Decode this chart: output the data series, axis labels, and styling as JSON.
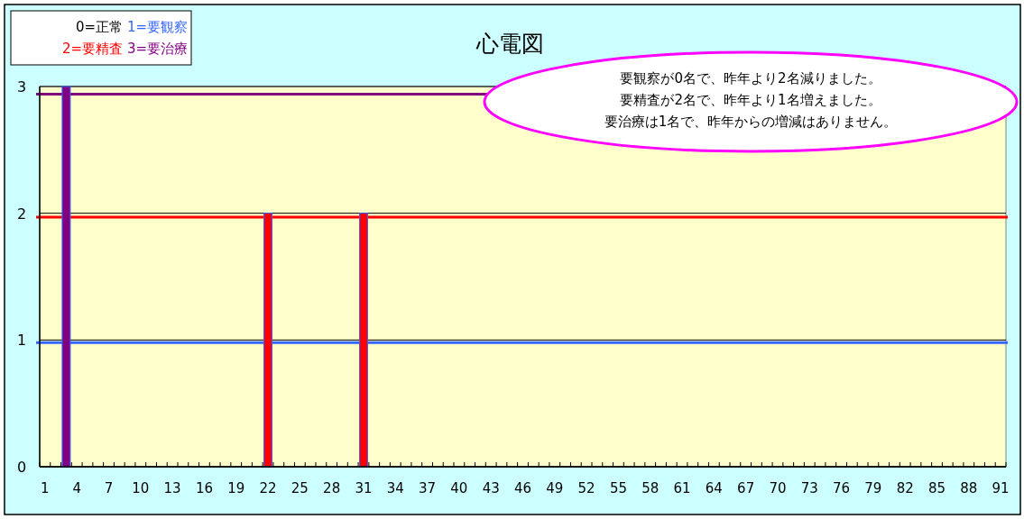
{
  "chart_data": {
    "type": "bar",
    "title": "心電図",
    "categories": [
      "1",
      null,
      null,
      "4",
      null,
      null,
      "7",
      null,
      null,
      "10",
      null,
      null,
      "13",
      null,
      null,
      "16",
      null,
      null,
      "19",
      null,
      null,
      "22",
      null,
      null,
      "25",
      null,
      null,
      "28",
      null,
      null,
      "31",
      null,
      null,
      "34",
      null,
      null,
      "37",
      null,
      null,
      "40",
      null,
      null,
      "43",
      null,
      null,
      "46",
      null,
      null,
      "49",
      null,
      null,
      "52",
      null,
      null,
      "55",
      null,
      null,
      "58",
      null,
      null,
      "61",
      null,
      null,
      "64",
      null,
      null,
      "67",
      null,
      null,
      "70",
      null,
      null,
      "73",
      null,
      null,
      "76",
      null,
      null,
      "79",
      null,
      null,
      "82",
      null,
      null,
      "85",
      null,
      null,
      "88",
      null,
      null,
      "91"
    ],
    "values": [
      0,
      0,
      3,
      0,
      0,
      0,
      0,
      0,
      0,
      0,
      0,
      0,
      0,
      0,
      0,
      0,
      0,
      0,
      0,
      0,
      0,
      2,
      0,
      0,
      0,
      0,
      0,
      0,
      0,
      0,
      2,
      0,
      0,
      0,
      0,
      0,
      0,
      0,
      0,
      0,
      0,
      0,
      0,
      0,
      0,
      0,
      0,
      0,
      0,
      0,
      0,
      0,
      0,
      0,
      0,
      0,
      0,
      0,
      0,
      0,
      0,
      0,
      0,
      0,
      0,
      0,
      0,
      0,
      0,
      0,
      0,
      0,
      0,
      0,
      0,
      0,
      0,
      0,
      0,
      0,
      0,
      0,
      0,
      0,
      0,
      0,
      0,
      0,
      0,
      0,
      0
    ],
    "colors": [
      "#ff0000",
      "#ff0000",
      "#800080",
      "#ff0000",
      "#ff0000",
      "#ff0000",
      "#ff0000",
      "#ff0000",
      "#ff0000",
      "#ff0000",
      "#ff0000",
      "#ff0000",
      "#ff0000",
      "#ff0000",
      "#ff0000",
      "#ff0000",
      "#ff0000",
      "#ff0000",
      "#ff0000",
      "#ff0000",
      "#ff0000",
      "#ff0000",
      "#ff0000",
      "#ff0000",
      "#ff0000",
      "#ff0000",
      "#ff0000",
      "#ff0000",
      "#ff0000",
      "#ff0000",
      "#ff0000",
      "#ff0000",
      "#ff0000",
      "#ff0000",
      "#ff0000",
      "#ff0000",
      "#ff0000",
      "#ff0000",
      "#ff0000",
      "#ff0000",
      "#ff0000",
      "#ff0000",
      "#ff0000",
      "#ff0000",
      "#ff0000",
      "#ff0000",
      "#ff0000",
      "#ff0000",
      "#ff0000",
      "#ff0000",
      "#ff0000",
      "#ff0000",
      "#ff0000",
      "#ff0000",
      "#ff0000",
      "#ff0000",
      "#ff0000",
      "#ff0000",
      "#ff0000",
      "#ff0000",
      "#ff0000",
      "#ff0000",
      "#ff0000",
      "#ff0000",
      "#ff0000",
      "#ff0000",
      "#ff0000",
      "#ff0000",
      "#ff0000",
      "#ff0000",
      "#ff0000",
      "#ff0000",
      "#ff0000",
      "#ff0000",
      "#ff0000",
      "#ff0000",
      "#ff0000",
      "#ff0000",
      "#ff0000",
      "#ff0000",
      "#ff0000",
      "#ff0000",
      "#ff0000",
      "#ff0000",
      "#ff0000",
      "#ff0000",
      "#ff0000",
      "#ff0000",
      "#ff0000",
      "#ff0000",
      "#ff0000"
    ],
    "ylim": [
      0,
      3
    ],
    "yticks": [
      0,
      1,
      2,
      3
    ],
    "grid": "y",
    "ref_lines": [
      {
        "axis": "y",
        "value": 0.98,
        "label": "1=要観察",
        "color": "#3366ff"
      },
      {
        "axis": "y",
        "value": 1.97,
        "label": "2=要精査",
        "color": "#ff0000"
      },
      {
        "axis": "y",
        "value": 2.94,
        "label": "3=要治療",
        "color": "#800080"
      }
    ],
    "annotations": [
      "0=正常",
      "要観察が0名で、昨年より2名減りました。",
      "要精査が2名で、昨年より1名増えました。",
      "要治療は1名で、昨年からの増減はありません。"
    ]
  }
}
